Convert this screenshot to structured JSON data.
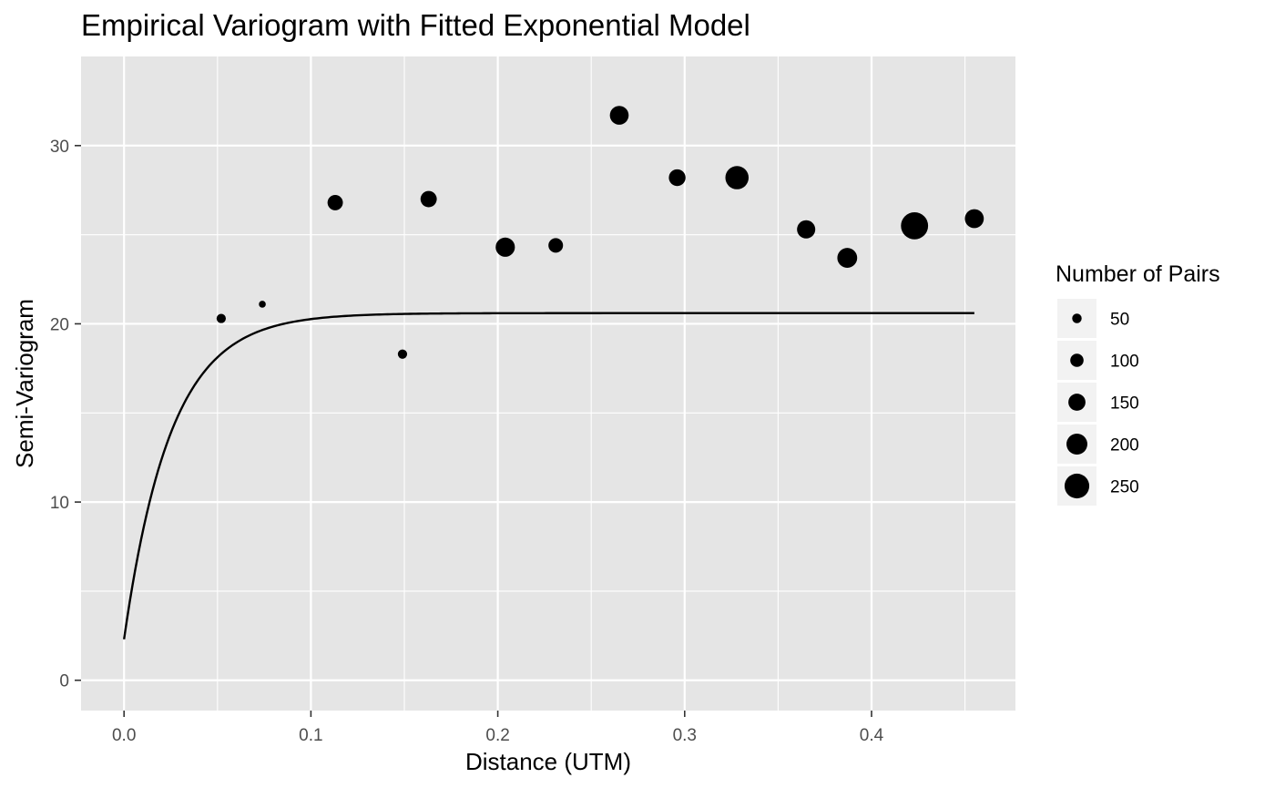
{
  "chart_data": {
    "type": "scatter",
    "title": "Empirical Variogram with Fitted Exponential Model",
    "xlabel": "Distance (UTM)",
    "ylabel": "Semi-Variogram",
    "xlim": [
      -0.023,
      0.477
    ],
    "ylim": [
      -1.7,
      35.0
    ],
    "x_ticks": [
      0.0,
      0.1,
      0.2,
      0.3,
      0.4
    ],
    "x_tick_labels": [
      "0.0",
      "0.1",
      "0.2",
      "0.3",
      "0.4"
    ],
    "y_ticks": [
      0,
      10,
      20,
      30
    ],
    "y_tick_labels": [
      "0",
      "10",
      "20",
      "30"
    ],
    "grid": true,
    "series": [
      {
        "kind": "points",
        "size_variable": "np",
        "points": [
          {
            "dist": 0.052,
            "gamma": 20.3,
            "np": 47
          },
          {
            "dist": 0.074,
            "gamma": 21.1,
            "np": 16
          },
          {
            "dist": 0.113,
            "gamma": 26.8,
            "np": 127
          },
          {
            "dist": 0.149,
            "gamma": 18.3,
            "np": 47
          },
          {
            "dist": 0.163,
            "gamma": 27.0,
            "np": 139
          },
          {
            "dist": 0.204,
            "gamma": 24.3,
            "np": 178
          },
          {
            "dist": 0.231,
            "gamma": 24.4,
            "np": 117
          },
          {
            "dist": 0.265,
            "gamma": 31.7,
            "np": 172
          },
          {
            "dist": 0.296,
            "gamma": 28.2,
            "np": 145
          },
          {
            "dist": 0.328,
            "gamma": 28.2,
            "np": 231
          },
          {
            "dist": 0.365,
            "gamma": 25.3,
            "np": 165
          },
          {
            "dist": 0.387,
            "gamma": 23.7,
            "np": 186
          },
          {
            "dist": 0.423,
            "gamma": 25.5,
            "np": 282
          },
          {
            "dist": 0.455,
            "gamma": 25.9,
            "np": 174
          }
        ]
      },
      {
        "kind": "line",
        "model": "exponential",
        "nugget": 2.3,
        "psill": 18.3,
        "range": 0.025,
        "x_start": 0.0,
        "x_end": 0.455
      }
    ],
    "legend": {
      "title": "Number of Pairs",
      "position": "right",
      "entries": [
        {
          "label": "50",
          "value": 50
        },
        {
          "label": "100",
          "value": 100
        },
        {
          "label": "150",
          "value": 150
        },
        {
          "label": "200",
          "value": 200
        },
        {
          "label": "250",
          "value": 250
        }
      ]
    },
    "colors": {
      "panel_background": "#e5e5e5",
      "grid_line": "#ffffff",
      "point": "#000000",
      "line": "#000000",
      "tick_label": "#4d4d4d",
      "tick_mark": "#333333",
      "legend_key_background": "#f2f2f2"
    }
  }
}
